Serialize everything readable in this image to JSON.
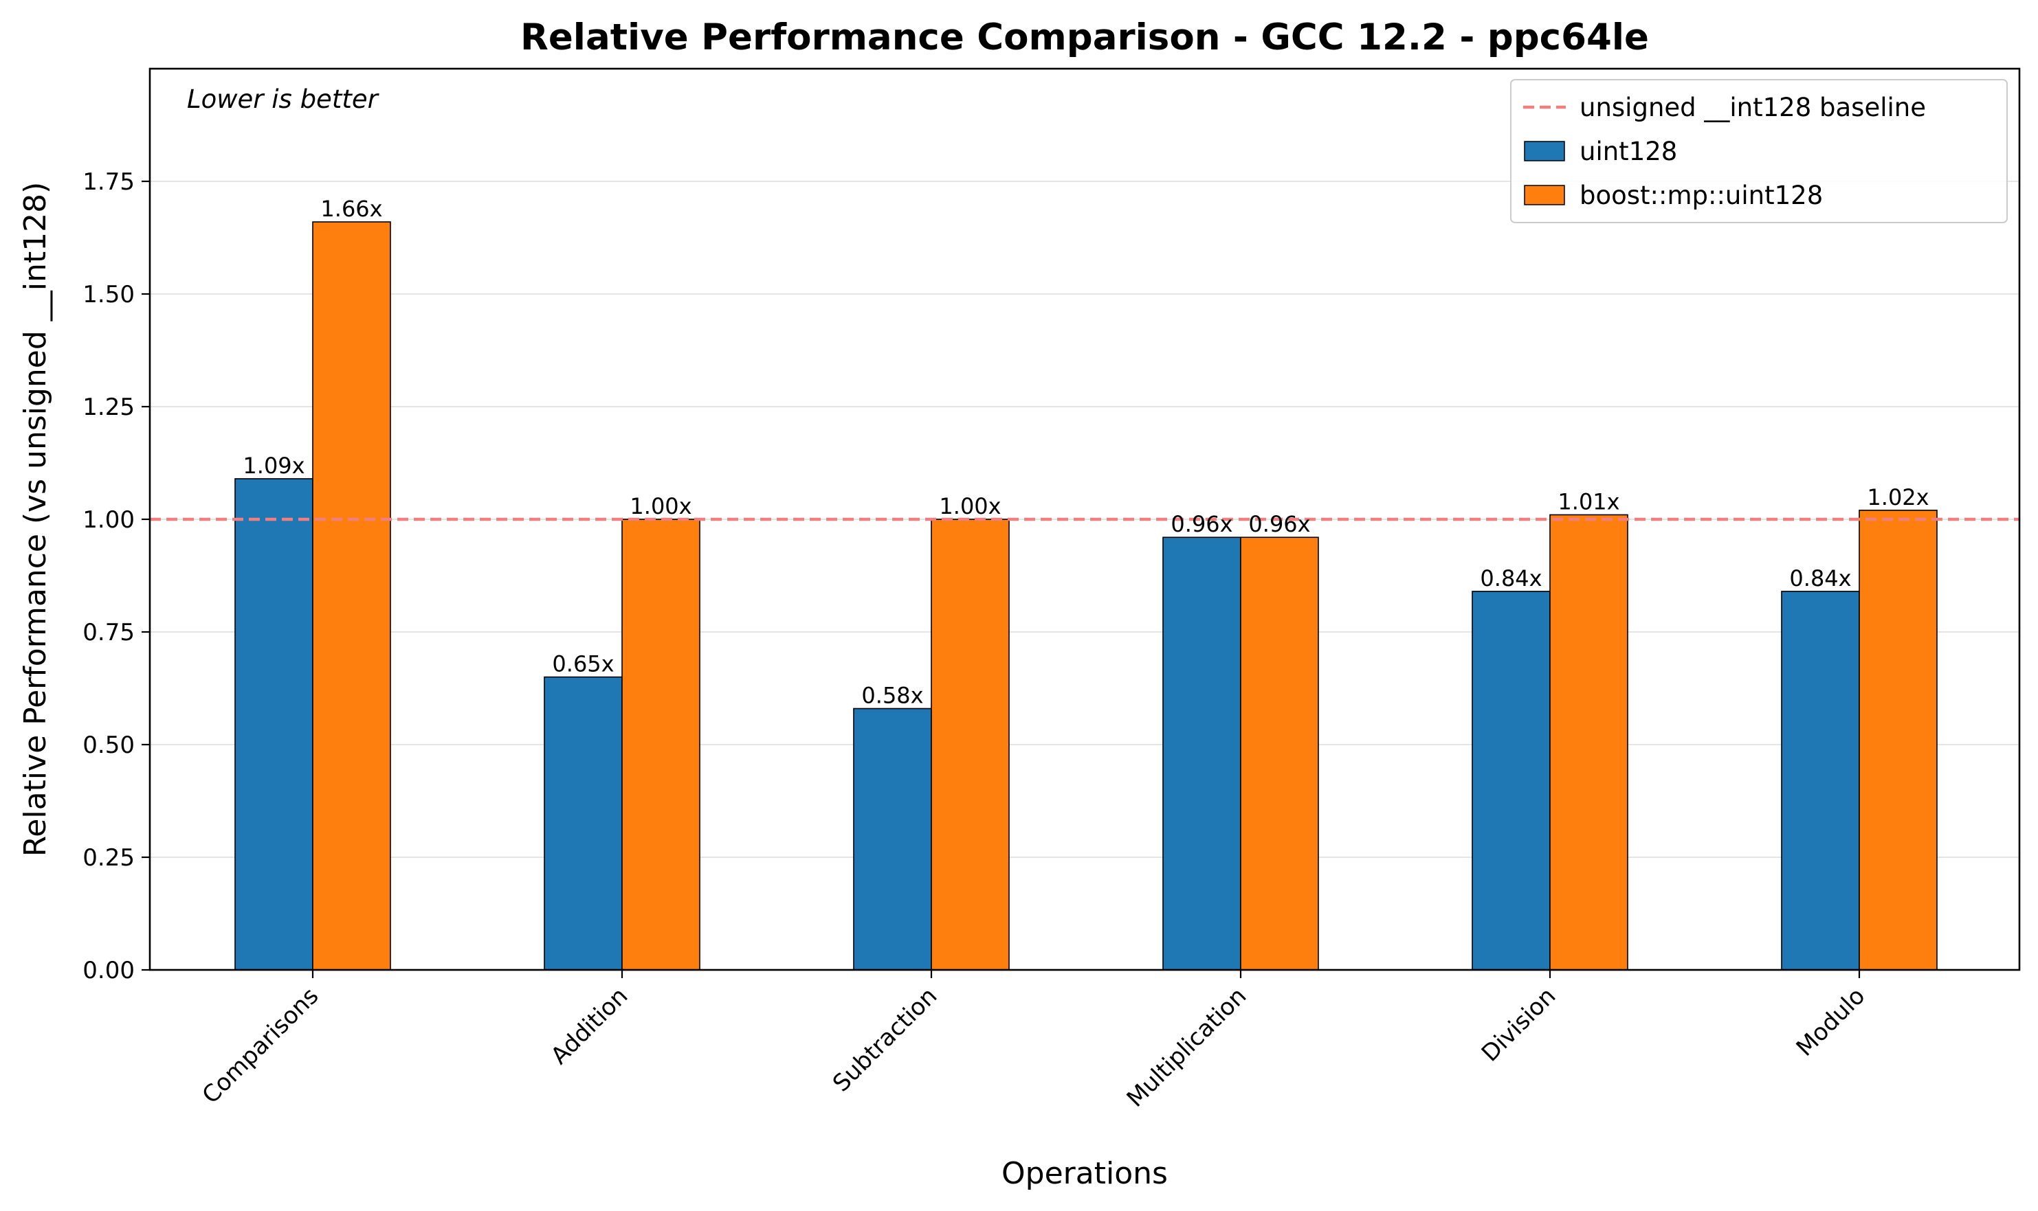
{
  "chart_data": {
    "type": "bar",
    "title": "Relative Performance Comparison - GCC 12.2 - ppc64le",
    "xlabel": "Operations",
    "ylabel": "Relative Performance (vs unsigned __int128)",
    "categories": [
      "Comparisons",
      "Addition",
      "Subtraction",
      "Multiplication",
      "Division",
      "Modulo"
    ],
    "series": [
      {
        "name": "uint128",
        "color": "#1f77b4",
        "values": [
          1.09,
          0.65,
          0.58,
          0.96,
          0.84,
          0.84
        ],
        "labels": [
          "1.09x",
          "0.65x",
          "0.58x",
          "0.96x",
          "0.84x",
          "0.84x"
        ]
      },
      {
        "name": "boost::mp::uint128",
        "color": "#ff7f0e",
        "values": [
          1.66,
          1.0,
          1.0,
          0.96,
          1.01,
          1.02
        ],
        "labels": [
          "1.66x",
          "1.00x",
          "1.00x",
          "0.96x",
          "1.01x",
          "1.02x"
        ]
      }
    ],
    "baseline": {
      "name": "unsigned __int128 baseline",
      "value": 1.0,
      "color": "#f08080"
    },
    "annotation": "Lower is better",
    "ylim": [
      0,
      2.0
    ],
    "yticks": [
      0.0,
      0.25,
      0.5,
      0.75,
      1.0,
      1.25,
      1.5,
      1.75
    ],
    "ytick_labels": [
      "0.00",
      "0.25",
      "0.50",
      "0.75",
      "1.00",
      "1.25",
      "1.50",
      "1.75"
    ],
    "grid": "y",
    "legend_position": "top-right"
  }
}
